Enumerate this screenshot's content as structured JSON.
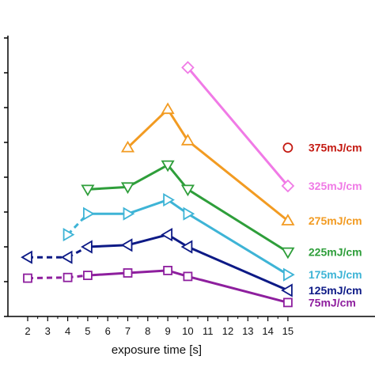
{
  "chart_data": {
    "type": "line",
    "xlabel": "exposure time [s]",
    "ylabel": "",
    "x_ticks": [
      2,
      3,
      4,
      5,
      6,
      7,
      8,
      9,
      10,
      11,
      12,
      13,
      14,
      15
    ],
    "xlim": [
      1.5,
      15.5
    ],
    "ylim": [
      0,
      8
    ],
    "y_ticks": [
      0,
      1,
      2,
      3,
      4,
      5,
      6,
      7,
      8
    ],
    "series": [
      {
        "name": "75mJ/cm",
        "color": "#8e1f9e",
        "marker": "square",
        "dashed_from": 2,
        "points": [
          [
            2,
            1.1
          ],
          [
            4,
            1.12
          ],
          [
            5,
            1.18
          ],
          [
            7,
            1.25
          ],
          [
            9,
            1.32
          ],
          [
            10,
            1.15
          ],
          [
            15,
            0.4
          ]
        ]
      },
      {
        "name": "125mJ/cm",
        "color": "#0d1a86",
        "marker": "triangle-left",
        "dashed_from": 2,
        "points": [
          [
            2,
            1.7
          ],
          [
            4,
            1.7
          ],
          [
            5,
            2.0
          ],
          [
            7,
            2.05
          ],
          [
            9,
            2.35
          ],
          [
            10,
            2.0
          ],
          [
            15,
            0.75
          ]
        ]
      },
      {
        "name": "175mJ/cm",
        "color": "#3eb4d6",
        "marker": "triangle-right",
        "dashed_from": 1,
        "points": [
          [
            4,
            2.35
          ],
          [
            5,
            2.95
          ],
          [
            7,
            2.95
          ],
          [
            9,
            3.35
          ],
          [
            10,
            2.95
          ],
          [
            15,
            1.2
          ]
        ]
      },
      {
        "name": "225mJ/cm",
        "color": "#2e9e3a",
        "marker": "triangle-down",
        "dashed_from": null,
        "points": [
          [
            5,
            3.65
          ],
          [
            7,
            3.72
          ],
          [
            9,
            4.35
          ],
          [
            10,
            3.65
          ],
          [
            15,
            1.85
          ]
        ]
      },
      {
        "name": "275mJ/cm",
        "color": "#f29b22",
        "marker": "triangle-up",
        "dashed_from": null,
        "points": [
          [
            7,
            4.85
          ],
          [
            9,
            5.95
          ],
          [
            10,
            5.05
          ],
          [
            15,
            2.75
          ]
        ]
      },
      {
        "name": "325mJ/cm",
        "color": "#f07ae6",
        "marker": "diamond",
        "dashed_from": null,
        "points": [
          [
            10,
            7.15
          ],
          [
            15,
            3.75
          ]
        ]
      },
      {
        "name": "375mJ/cm",
        "color": "#c41a12",
        "marker": "circle",
        "dashed_from": null,
        "points": [
          [
            15,
            4.85
          ]
        ]
      }
    ]
  }
}
